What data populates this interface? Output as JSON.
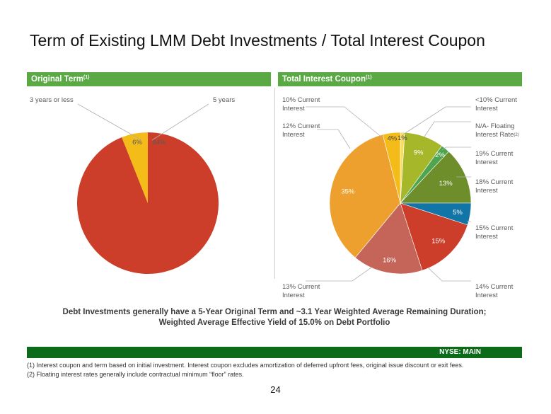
{
  "title": "Term of Existing LMM Debt Investments / Total Interest Coupon",
  "left_panel": {
    "header": "Original Term",
    "header_note": "(1)",
    "labels": {
      "three_years": "3 years or less",
      "five_years": "5 years"
    }
  },
  "right_panel": {
    "header": "Total Interest Coupon",
    "header_note": "(1)",
    "labels": {
      "ten": [
        "10% Current",
        "Interest"
      ],
      "lt10": [
        "<10% Current",
        "Interest"
      ],
      "twelve": [
        "12% Current",
        "Interest"
      ],
      "floating": [
        "N/A- Floating",
        "Interest Rate"
      ],
      "floating_note": "(2)",
      "nineteen": [
        "19% Current",
        "Interest"
      ],
      "eighteen": [
        "18% Current",
        "Interest"
      ],
      "fifteen": [
        "15% Current",
        "Interest"
      ],
      "thirteen": [
        "13% Current",
        "Interest"
      ],
      "fourteen": [
        "14% Current",
        "Interest"
      ]
    }
  },
  "chart_data": [
    {
      "type": "pie",
      "categories": [
        "5 years",
        "3 years or less"
      ],
      "values": [
        94,
        6
      ],
      "value_labels": [
        "94%",
        "6%"
      ],
      "colors": [
        "#cc3e29",
        "#f4bc19"
      ]
    },
    {
      "type": "pie",
      "categories": [
        "<10% Current Interest",
        "N/A- Floating Interest Rate",
        "19% Current Interest",
        "18% Current Interest",
        "15% Current Interest",
        "14% Current Interest",
        "13% Current Interest",
        "12% Current Interest",
        "10% Current Interest"
      ],
      "values": [
        1,
        9,
        2,
        13,
        5,
        15,
        16,
        35,
        4
      ],
      "value_labels": [
        "1%",
        "9%",
        "2%",
        "13%",
        "5%",
        "15%",
        "16%",
        "35%",
        "4%"
      ],
      "colors": [
        "#f7de5e",
        "#a6b729",
        "#4ea44f",
        "#6e8e2c",
        "#1275a8",
        "#cc3e29",
        "#c56458",
        "#eea02f",
        "#f4bc19"
      ]
    }
  ],
  "summary": [
    "Debt Investments generally have a 5-Year Original Term and ~3.1 Year Weighted Average Remaining Duration;",
    "Weighted Average Effective Yield of 15.0% on Debt Portfolio"
  ],
  "ticker": "NYSE:  MAIN",
  "footnotes": [
    "(1) Interest coupon and term based on initial investment.  Interest coupon excludes amortization of deferred upfront fees, original issue discount or exit fees.",
    "(2) Floating interest rates generally include contractual minimum “floor” rates."
  ],
  "page_number": "24"
}
